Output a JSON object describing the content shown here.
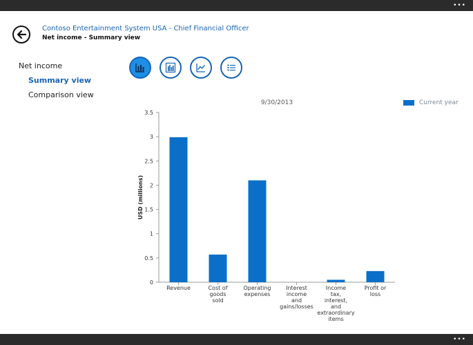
{
  "system": {
    "menu_dots": "•••"
  },
  "header": {
    "title": "Contoso Entertainment System USA - Chief Financial Officer",
    "subtitle": "Net income - Summary view"
  },
  "nav": {
    "section": "Net income",
    "items": [
      {
        "label": "Summary view",
        "active": true
      },
      {
        "label": "Comparison view",
        "active": false
      }
    ]
  },
  "view_buttons": [
    {
      "icon": "bar-chart-icon",
      "active": true
    },
    {
      "icon": "grouped-bar-chart-icon",
      "active": false
    },
    {
      "icon": "line-chart-icon",
      "active": false
    },
    {
      "icon": "list-icon",
      "active": false
    }
  ],
  "legend": {
    "label": "Current year",
    "color": "#0b6fc8"
  },
  "chart_data": {
    "type": "bar",
    "title": "9/30/2013",
    "ylabel": "USD (millions)",
    "xlabel": "",
    "ylim": [
      0,
      3.5
    ],
    "yticks": [
      "0",
      "0.5",
      "1",
      "1.5",
      "2",
      "2.5",
      "3",
      "3.5"
    ],
    "categories": [
      [
        "Revenue"
      ],
      [
        "Cost of",
        "goods",
        "sold"
      ],
      [
        "Operating",
        "expenses"
      ],
      [
        "Interest",
        "income",
        "and",
        "gains/losses"
      ],
      [
        "Income",
        "tax,",
        "interest,",
        "and",
        "extraordinary",
        "items"
      ],
      [
        "Profit or",
        "loss"
      ]
    ],
    "series": [
      {
        "name": "Current year",
        "color": "#0b6fc8",
        "values": [
          2.99,
          0.57,
          2.1,
          0.0,
          0.05,
          0.23
        ]
      }
    ],
    "grid": false,
    "legend_position": "top-right"
  }
}
